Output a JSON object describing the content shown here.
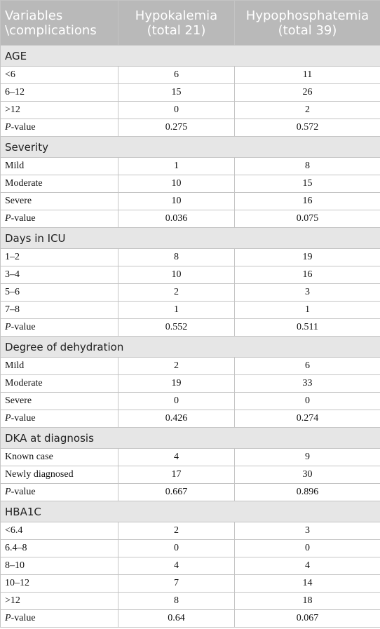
{
  "table": {
    "header": [
      "Variables \\complications",
      "Hypokalemia (total 21)",
      "Hypophosphatemia (total 39)"
    ],
    "sections": [
      {
        "title": "AGE",
        "rows": [
          [
            "<6",
            "6",
            "11"
          ],
          [
            "6–12",
            "15",
            "26"
          ],
          [
            ">12",
            "0",
            "2"
          ],
          [
            "P-value",
            "0.275",
            "0.572"
          ]
        ]
      },
      {
        "title": "Severity",
        "rows": [
          [
            "Mild",
            "1",
            "8"
          ],
          [
            "Moderate",
            "10",
            "15"
          ],
          [
            "Severe",
            "10",
            "16"
          ],
          [
            "P-value",
            "0.036",
            "0.075"
          ]
        ]
      },
      {
        "title": "Days in ICU",
        "rows": [
          [
            "1–2",
            "8",
            "19"
          ],
          [
            "3–4",
            "10",
            "16"
          ],
          [
            "5–6",
            "2",
            "3"
          ],
          [
            "7–8",
            "1",
            "1"
          ],
          [
            "P-value",
            "0.552",
            "0.511"
          ]
        ]
      },
      {
        "title": "Degree of dehydration",
        "rows": [
          [
            "Mild",
            "2",
            "6"
          ],
          [
            "Moderate",
            "19",
            "33"
          ],
          [
            "Severe",
            "0",
            "0"
          ],
          [
            "P-value",
            "0.426",
            "0.274"
          ]
        ]
      },
      {
        "title": "DKA at diagnosis",
        "rows": [
          [
            "Known case",
            "4",
            "9"
          ],
          [
            "Newly diagnosed",
            "17",
            "30"
          ],
          [
            "P-value",
            "0.667",
            "0.896"
          ]
        ]
      },
      {
        "title": "HBA1C",
        "rows": [
          [
            "<6.4",
            "2",
            "3"
          ],
          [
            "6.4–8",
            "0",
            "0"
          ],
          [
            "8–10",
            "4",
            "4"
          ],
          [
            "10–12",
            "7",
            "14"
          ],
          [
            ">12",
            "8",
            "18"
          ],
          [
            "P-value",
            "0.64",
            "0.067"
          ]
        ]
      }
    ]
  }
}
